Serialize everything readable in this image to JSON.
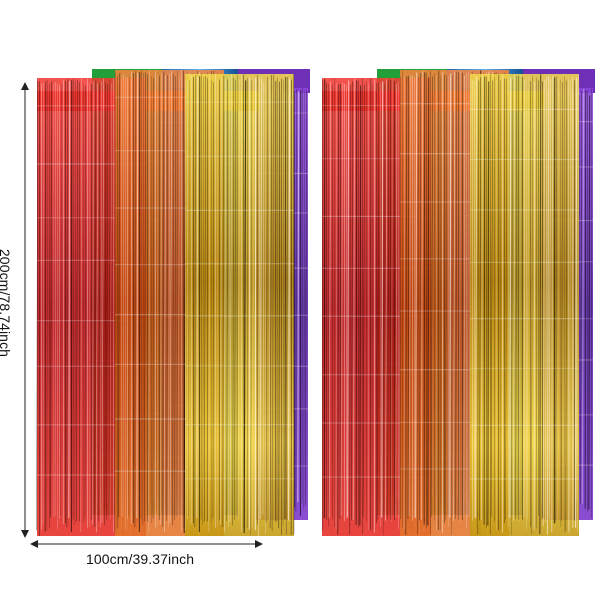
{
  "dimensions": {
    "height_label": "200cm/78.74inch",
    "width_label": "100cm/39.37inch"
  },
  "product": {
    "sets": 2,
    "curtain_colors": [
      "#d91515",
      "#e0661c",
      "#d6aa17",
      "#6c2bb5",
      "#1f9d35",
      "#1166b8"
    ]
  }
}
